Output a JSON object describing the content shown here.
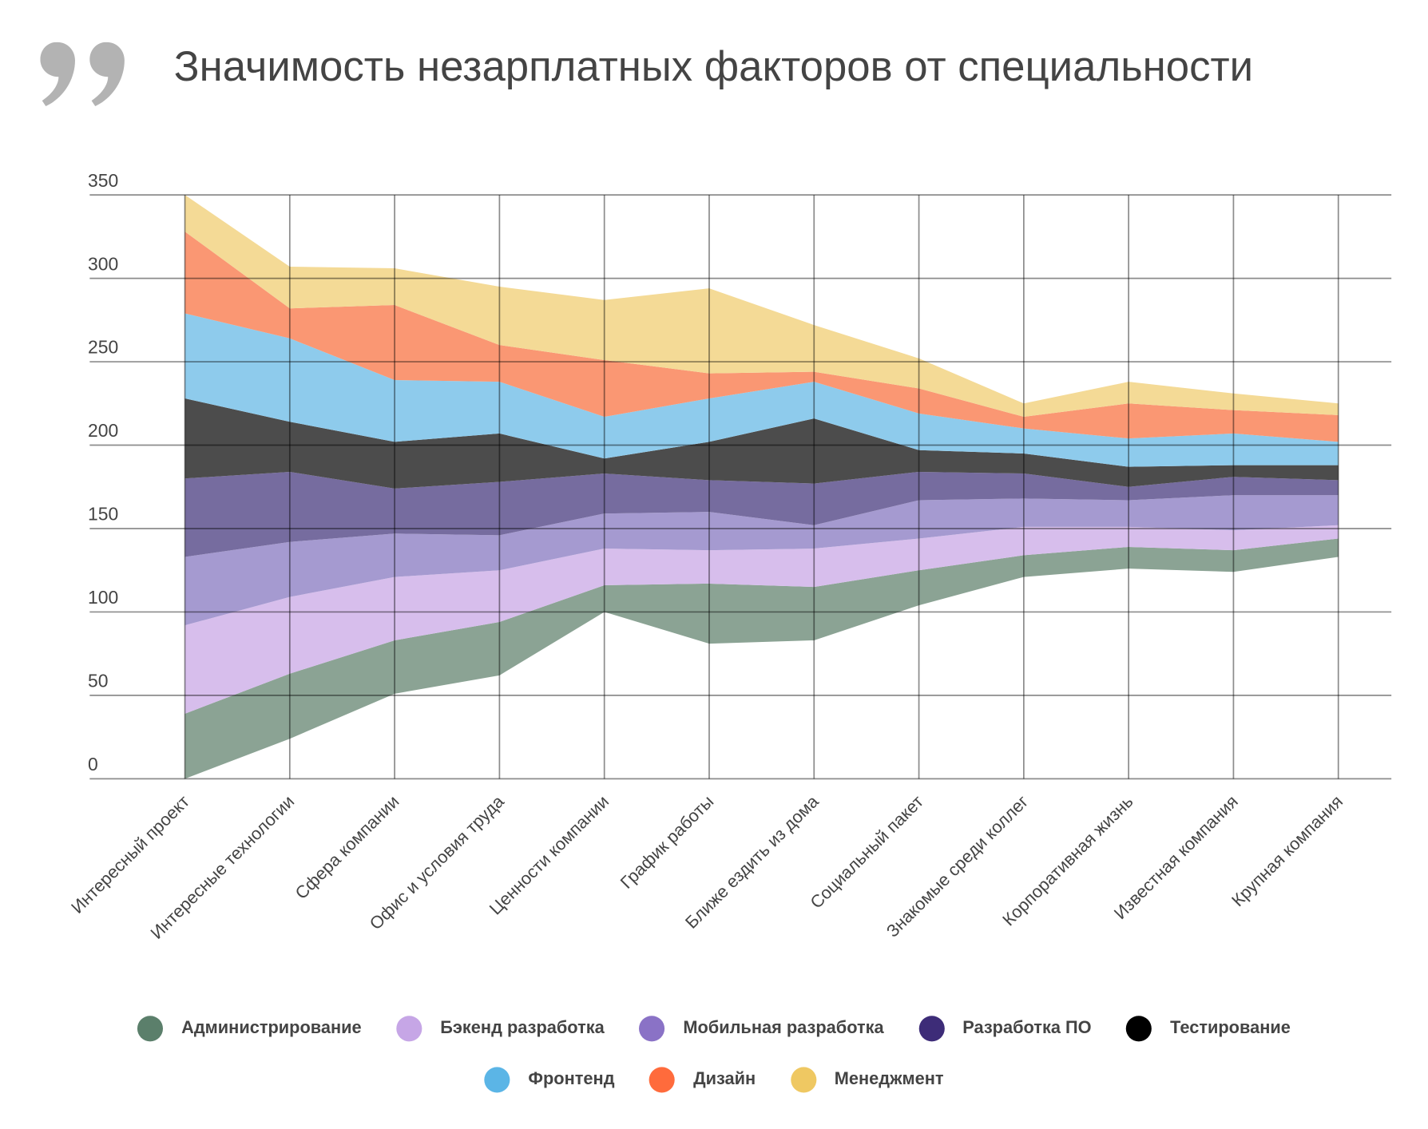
{
  "quote_icon": "quote-marks-icon",
  "title": "Значимость незарплатных факторов от специальности",
  "chart_data": {
    "type": "area",
    "stacked": true,
    "title": "Значимость незарплатных факторов от специальности",
    "xlabel": "",
    "ylabel": "",
    "ylim": [
      0,
      350
    ],
    "yticks": [
      "0",
      "50",
      "100",
      "150",
      "200",
      "250",
      "300",
      "350"
    ],
    "grid": true,
    "legend_position": "bottom",
    "categories": [
      "Интересный проект",
      "Интересные технологии",
      "Сфера компании",
      "Офис и условия труда",
      "Ценности компании",
      "График работы",
      "Ближе ездить из дома",
      "Социальный пакет",
      "Знакомые среди коллег",
      "Корпоративная жизнь",
      "Известная компания",
      "Крупная компания"
    ],
    "baseline": [
      0,
      24,
      51,
      62,
      100,
      81,
      83,
      104,
      121,
      126,
      124,
      133
    ],
    "series": [
      {
        "name": "Администрирование",
        "color": "#5b7f6b",
        "fill": "#8ba394",
        "values": [
          39,
          39,
          32,
          32,
          16,
          36,
          32,
          21,
          13,
          13,
          13,
          11
        ]
      },
      {
        "name": "Бэкенд разработка",
        "color": "#c6a6e6",
        "fill": "#d7beec",
        "values": [
          53,
          46,
          38,
          31,
          22,
          20,
          23,
          19,
          17,
          12,
          12,
          8
        ]
      },
      {
        "name": "Мобильная разработка",
        "color": "#8a72c6",
        "fill": "#a59ad0",
        "values": [
          41,
          33,
          26,
          21,
          21,
          23,
          14,
          23,
          17,
          16,
          21,
          18
        ]
      },
      {
        "name": "Разработка ПО",
        "color": "#3d2c78",
        "fill": "#766c9f",
        "values": [
          47,
          42,
          27,
          32,
          24,
          19,
          25,
          17,
          15,
          8,
          11,
          9
        ]
      },
      {
        "name": "Тестирование",
        "color": "#000000",
        "fill": "#4c4c4c",
        "values": [
          48,
          30,
          28,
          29,
          9,
          23,
          39,
          13,
          12,
          12,
          7,
          9
        ]
      },
      {
        "name": "Фронтенд",
        "color": "#5bb5e6",
        "fill": "#8ecbec",
        "values": [
          51,
          50,
          37,
          31,
          25,
          26,
          22,
          22,
          15,
          17,
          19,
          14
        ]
      },
      {
        "name": "Дизайн",
        "color": "#ff6b3c",
        "fill": "#fa9773",
        "values": [
          49,
          18,
          45,
          22,
          34,
          15,
          6,
          15,
          7,
          21,
          14,
          16
        ]
      },
      {
        "name": "Менеджмент",
        "color": "#efc862",
        "fill": "#f4da96",
        "values": [
          22,
          25,
          22,
          35,
          36,
          51,
          28,
          18,
          8,
          13,
          10,
          7
        ]
      }
    ]
  }
}
